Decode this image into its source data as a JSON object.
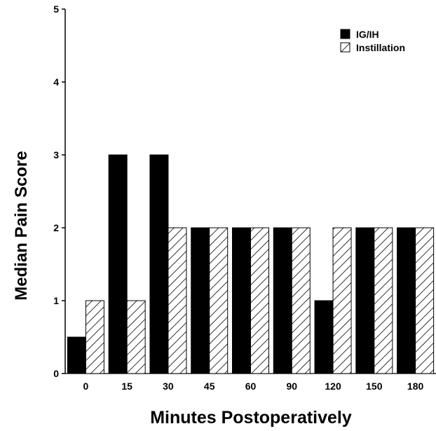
{
  "chart_data": {
    "type": "bar",
    "categories": [
      "0",
      "15",
      "30",
      "45",
      "60",
      "90",
      "120",
      "150",
      "180"
    ],
    "series": [
      {
        "name": "IG/IH",
        "values": [
          0.5,
          3,
          3,
          2,
          2,
          2,
          1,
          2,
          2
        ],
        "fill": "solid",
        "color": "#000000"
      },
      {
        "name": "Instillation",
        "values": [
          1,
          1,
          2,
          2,
          2,
          2,
          2,
          2,
          2
        ],
        "fill": "hatch",
        "color": "#000000"
      }
    ],
    "xlabel": "Minutes Postoperatively",
    "ylabel": "Median Pain Score",
    "ylim": [
      0,
      5
    ],
    "yticks": [
      "0",
      "1",
      "2",
      "3",
      "4",
      "5"
    ],
    "grid": false,
    "legend": "top-right"
  }
}
